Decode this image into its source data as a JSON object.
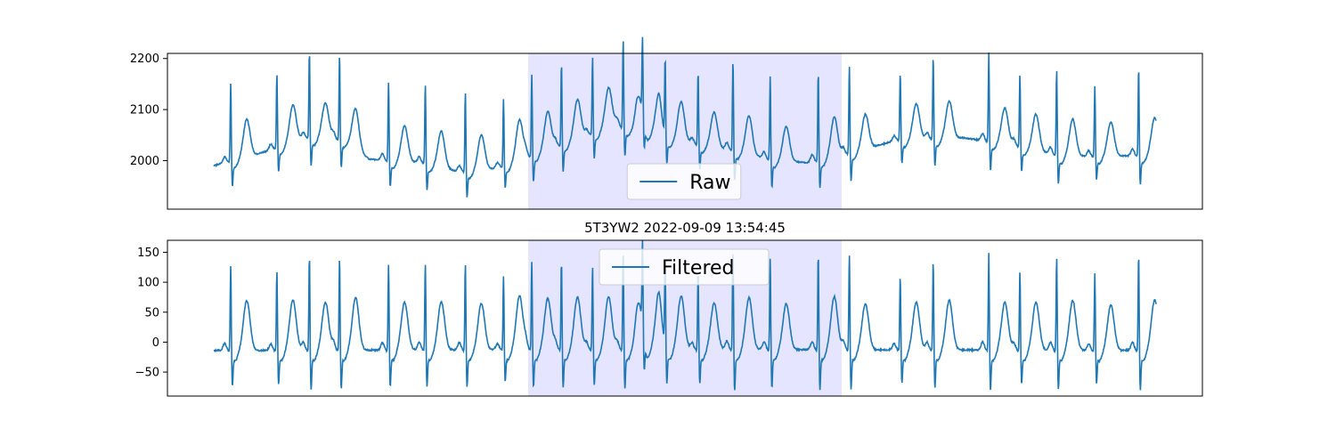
{
  "chart_data": [
    {
      "type": "line",
      "title": "",
      "xlabel": "",
      "ylabel": "",
      "ylim": [
        1905,
        2210
      ],
      "yticks": [
        2000,
        2100,
        2200
      ],
      "grid": false,
      "legend": {
        "position": "bottom-center",
        "entries": [
          "Raw"
        ]
      },
      "highlight": {
        "from": 0.333,
        "to": 0.667,
        "color": "#e5e5ff"
      },
      "series": [
        {
          "name": "Raw",
          "color": "#1f77b4",
          "signal": {
            "beat_times": [
              0.036,
              0.134,
              0.203,
              0.267,
              0.371,
              0.449,
              0.534,
              0.615,
              0.675,
              0.738,
              0.804,
              0.869,
              0.91,
              0.958,
              1.028,
              1.102,
              1.181,
              1.283,
              1.349,
              1.457,
              1.527,
              1.645,
              1.711,
              1.789,
              1.87,
              1.963
            ],
            "baseline": [
              [
                0.0,
                1990
              ],
              [
                0.1,
                2015
              ],
              [
                0.2,
                2045
              ],
              [
                0.28,
                2040
              ],
              [
                0.33,
                2003
              ],
              [
                0.45,
                1995
              ],
              [
                0.52,
                1978
              ],
              [
                0.6,
                1985
              ],
              [
                0.67,
                2008
              ],
              [
                0.78,
                2045
              ],
              [
                0.85,
                2070
              ],
              [
                0.96,
                2042
              ],
              [
                1.04,
                2030
              ],
              [
                1.11,
                2018
              ],
              [
                1.18,
                2002
              ],
              [
                1.26,
                1996
              ],
              [
                1.33,
                2010
              ],
              [
                1.45,
                2040
              ],
              [
                1.59,
                2045
              ],
              [
                1.7,
                2030
              ],
              [
                1.8,
                2008
              ],
              [
                2.0,
                2010
              ]
            ],
            "r_amp": 160,
            "s_amp": 42,
            "t_amp": 72,
            "p_amp": 12
          }
        }
      ]
    },
    {
      "type": "line",
      "title": "5T3YW2 2022-09-09 13:54:45",
      "xlabel": "",
      "ylabel": "",
      "ylim": [
        -90,
        170
      ],
      "yticks": [
        -50,
        0,
        50,
        100,
        150
      ],
      "grid": false,
      "legend": {
        "position": "top-center",
        "entries": [
          "Filtered"
        ]
      },
      "highlight": {
        "from": 0.333,
        "to": 0.667,
        "color": "#e5e5ff"
      },
      "series": [
        {
          "name": "Filtered",
          "color": "#1f77b4",
          "signal": {
            "beat_times": [
              0.036,
              0.134,
              0.203,
              0.267,
              0.371,
              0.449,
              0.534,
              0.615,
              0.675,
              0.738,
              0.804,
              0.869,
              0.91,
              0.958,
              1.028,
              1.102,
              1.181,
              1.283,
              1.349,
              1.457,
              1.527,
              1.645,
              1.711,
              1.789,
              1.87,
              1.963
            ],
            "baseline": [
              [
                0.0,
                -14
              ],
              [
                1.0,
                -12
              ],
              [
                2.0,
                -14
              ]
            ],
            "r_amp": 150,
            "s_amp": 50,
            "t_amp": 82,
            "p_amp": 12
          }
        }
      ]
    }
  ]
}
